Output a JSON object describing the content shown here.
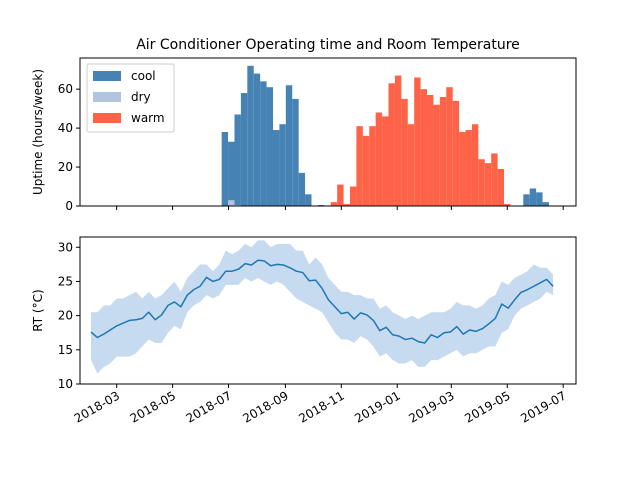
{
  "chart_data": {
    "title": "Air Conditioner Operating time and Room Temperature",
    "x_axis": {
      "type": "date",
      "range": [
        "2018-01-20",
        "2019-07-15"
      ],
      "ticks": [
        "2018-03",
        "2018-05",
        "2018-07",
        "2018-09",
        "2018-11",
        "2019-01",
        "2019-03",
        "2019-05",
        "2019-07"
      ],
      "tick_labels_rotated": true
    },
    "charts": [
      {
        "type": "bar",
        "ylabel": "Uptime (hours/week)",
        "ylim": [
          0,
          76
        ],
        "yticks": [
          0,
          20,
          40,
          60
        ],
        "legend": {
          "position": "top-left",
          "entries": [
            "cool",
            "dry",
            "warm"
          ]
        },
        "grid": false,
        "series": [
          {
            "name": "cool",
            "color": "#4682b4",
            "points": [
              [
                "2018-06-27",
                38
              ],
              [
                "2018-07-04",
                33
              ],
              [
                "2018-07-11",
                47
              ],
              [
                "2018-07-18",
                58
              ],
              [
                "2018-07-25",
                72
              ],
              [
                "2018-08-01",
                68
              ],
              [
                "2018-08-08",
                64
              ],
              [
                "2018-08-15",
                61
              ],
              [
                "2018-08-22",
                39
              ],
              [
                "2018-08-29",
                42
              ],
              [
                "2018-09-05",
                62
              ],
              [
                "2018-09-12",
                55
              ],
              [
                "2018-09-19",
                17
              ],
              [
                "2018-09-26",
                6
              ],
              [
                "2018-10-03",
                0
              ],
              [
                "2018-10-10",
                0.5
              ],
              [
                "2018-10-17",
                0
              ],
              [
                "2018-10-24",
                0.5
              ],
              [
                "2019-05-22",
                6
              ],
              [
                "2019-05-29",
                9
              ],
              [
                "2019-06-05",
                7
              ],
              [
                "2019-06-12",
                2
              ]
            ]
          },
          {
            "name": "dry",
            "color": "#b0c4de",
            "points": [
              [
                "2018-07-04",
                3
              ],
              [
                "2018-07-11",
                0.5
              ]
            ]
          },
          {
            "name": "warm",
            "color": "#ff6347",
            "points": [
              [
                "2018-10-24",
                2
              ],
              [
                "2018-10-31",
                11
              ],
              [
                "2018-11-07",
                1
              ],
              [
                "2018-11-14",
                10
              ],
              [
                "2018-11-21",
                41
              ],
              [
                "2018-11-28",
                36
              ],
              [
                "2018-12-05",
                41
              ],
              [
                "2018-12-12",
                48
              ],
              [
                "2018-12-19",
                46
              ],
              [
                "2018-12-26",
                63
              ],
              [
                "2019-01-02",
                67
              ],
              [
                "2019-01-09",
                55
              ],
              [
                "2019-01-16",
                42
              ],
              [
                "2019-01-23",
                66
              ],
              [
                "2019-01-30",
                60
              ],
              [
                "2019-02-06",
                57
              ],
              [
                "2019-02-13",
                52
              ],
              [
                "2019-02-20",
                56
              ],
              [
                "2019-02-27",
                61
              ],
              [
                "2019-03-06",
                54
              ],
              [
                "2019-03-13",
                38
              ],
              [
                "2019-03-20",
                39
              ],
              [
                "2019-03-27",
                42
              ],
              [
                "2019-04-03",
                24
              ],
              [
                "2019-04-10",
                22
              ],
              [
                "2019-04-17",
                27
              ],
              [
                "2019-04-24",
                19
              ],
              [
                "2019-05-01",
                1
              ]
            ]
          }
        ]
      },
      {
        "type": "line",
        "ylabel": "RT (°C)",
        "ylim": [
          10,
          31.5
        ],
        "yticks": [
          10,
          15,
          20,
          25,
          30
        ],
        "grid": false,
        "series": [
          {
            "color": "#1f77b4",
            "band_color": "#c6dbef",
            "points": [
              [
                "2018-02-01",
                17.6,
                13.5,
                20.5
              ],
              [
                "2018-02-08",
                16.8,
                11.5,
                20.5
              ],
              [
                "2018-02-15",
                17.3,
                12.5,
                21.5
              ],
              [
                "2018-02-22",
                17.9,
                13.0,
                21.5
              ],
              [
                "2018-03-01",
                18.5,
                14.0,
                22.5
              ],
              [
                "2018-03-08",
                18.9,
                14.0,
                22.5
              ],
              [
                "2018-03-15",
                19.3,
                14.0,
                23.0
              ],
              [
                "2018-03-22",
                19.4,
                14.5,
                23.5
              ],
              [
                "2018-03-29",
                19.6,
                15.5,
                22.5
              ],
              [
                "2018-04-05",
                20.5,
                16.5,
                23.5
              ],
              [
                "2018-04-12",
                19.4,
                16.0,
                22.5
              ],
              [
                "2018-04-19",
                20.1,
                16.0,
                23.0
              ],
              [
                "2018-04-26",
                21.5,
                17.5,
                24.0
              ],
              [
                "2018-05-03",
                22.0,
                18.5,
                25.0
              ],
              [
                "2018-05-10",
                21.3,
                18.0,
                23.5
              ],
              [
                "2018-05-17",
                23.0,
                20.5,
                25.5
              ],
              [
                "2018-05-24",
                23.8,
                21.5,
                26.5
              ],
              [
                "2018-05-31",
                24.3,
                22.0,
                27.5
              ],
              [
                "2018-06-07",
                25.6,
                23.0,
                27.5
              ],
              [
                "2018-06-14",
                25.0,
                22.5,
                26.5
              ],
              [
                "2018-06-21",
                25.3,
                23.0,
                27.5
              ],
              [
                "2018-06-28",
                26.5,
                24.5,
                29.5
              ],
              [
                "2018-07-05",
                26.5,
                24.5,
                29.0
              ],
              [
                "2018-07-12",
                26.8,
                24.5,
                29.5
              ],
              [
                "2018-07-19",
                27.6,
                25.5,
                30.5
              ],
              [
                "2018-07-26",
                27.4,
                25.0,
                30.0
              ],
              [
                "2018-08-02",
                28.1,
                25.5,
                31.0
              ],
              [
                "2018-08-09",
                28.0,
                25.0,
                31.0
              ],
              [
                "2018-08-16",
                27.3,
                24.5,
                30.0
              ],
              [
                "2018-08-23",
                27.5,
                25.0,
                30.5
              ],
              [
                "2018-08-30",
                27.4,
                24.5,
                30.5
              ],
              [
                "2018-09-06",
                27.0,
                23.5,
                30.5
              ],
              [
                "2018-09-13",
                26.5,
                22.5,
                29.5
              ],
              [
                "2018-09-20",
                26.3,
                22.0,
                29.5
              ],
              [
                "2018-09-27",
                25.1,
                21.5,
                27.5
              ],
              [
                "2018-10-04",
                25.2,
                21.0,
                28.5
              ],
              [
                "2018-10-11",
                24.0,
                20.5,
                27.5
              ],
              [
                "2018-10-18",
                22.3,
                19.0,
                25.5
              ],
              [
                "2018-10-25",
                21.3,
                17.5,
                24.5
              ],
              [
                "2018-11-01",
                20.3,
                16.5,
                23.5
              ],
              [
                "2018-11-08",
                20.5,
                16.5,
                23.5
              ],
              [
                "2018-11-15",
                19.5,
                16.0,
                23.0
              ],
              [
                "2018-11-22",
                20.4,
                17.0,
                23.0
              ],
              [
                "2018-11-29",
                20.1,
                16.5,
                22.5
              ],
              [
                "2018-12-06",
                19.3,
                15.5,
                22.5
              ],
              [
                "2018-12-13",
                17.8,
                14.0,
                21.0
              ],
              [
                "2018-12-20",
                18.3,
                14.5,
                21.5
              ],
              [
                "2018-12-27",
                17.2,
                13.5,
                20.5
              ],
              [
                "2019-01-03",
                17.0,
                13.0,
                20.0
              ],
              [
                "2019-01-10",
                16.5,
                13.0,
                19.5
              ],
              [
                "2019-01-17",
                16.7,
                13.5,
                20.0
              ],
              [
                "2019-01-24",
                16.2,
                12.5,
                19.5
              ],
              [
                "2019-01-31",
                16.0,
                12.5,
                20.0
              ],
              [
                "2019-02-07",
                17.2,
                13.5,
                20.5
              ],
              [
                "2019-02-14",
                16.8,
                13.5,
                20.5
              ],
              [
                "2019-02-21",
                17.5,
                14.0,
                20.5
              ],
              [
                "2019-02-28",
                17.6,
                14.5,
                21.0
              ],
              [
                "2019-03-07",
                18.4,
                15.0,
                22.0
              ],
              [
                "2019-03-14",
                17.3,
                14.0,
                21.5
              ],
              [
                "2019-03-21",
                17.9,
                14.5,
                21.5
              ],
              [
                "2019-03-28",
                17.7,
                14.5,
                21.0
              ],
              [
                "2019-04-04",
                18.1,
                15.0,
                21.5
              ],
              [
                "2019-04-11",
                18.8,
                15.5,
                22.5
              ],
              [
                "2019-04-18",
                19.6,
                15.5,
                23.0
              ],
              [
                "2019-04-25",
                21.7,
                17.5,
                25.0
              ],
              [
                "2019-05-02",
                21.1,
                18.0,
                24.5
              ],
              [
                "2019-05-09",
                22.3,
                20.0,
                25.5
              ],
              [
                "2019-05-16",
                23.4,
                21.0,
                26.0
              ],
              [
                "2019-05-23",
                23.8,
                21.5,
                26.5
              ],
              [
                "2019-05-30",
                24.3,
                22.0,
                27.5
              ],
              [
                "2019-06-06",
                24.8,
                22.5,
                27.0
              ],
              [
                "2019-06-13",
                25.3,
                23.5,
                27.0
              ],
              [
                "2019-06-20",
                24.3,
                23.0,
                26.0
              ]
            ]
          }
        ]
      }
    ]
  }
}
